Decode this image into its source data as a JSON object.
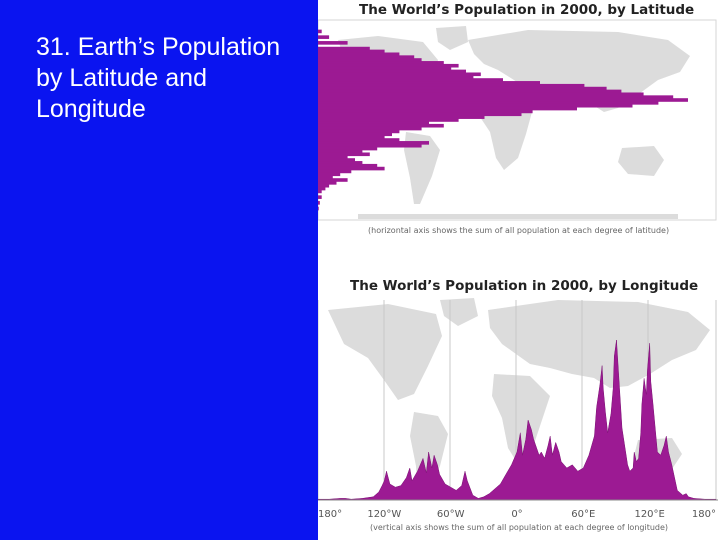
{
  "slide": {
    "title_lines": [
      "31. Earth’s Population",
      "by Latitude and",
      "Longitude"
    ],
    "background_color": "#0a14f0",
    "title_color": "#ffffff"
  },
  "chart_data": [
    {
      "type": "area",
      "orientation": "horizontal",
      "title": "The World’s Population in 2000, by Latitude",
      "note": "(horizontal axis shows the sum of all population at each degree of latitude)",
      "y_unit": "degrees latitude",
      "ylim": [
        -60,
        80
      ],
      "xlim": [
        0,
        100
      ],
      "x_unit": "relative population sum",
      "background": "world map",
      "series": [
        {
          "color": "#9c1a93",
          "y": [
            72,
            68,
            64,
            60,
            58,
            56,
            54,
            52,
            50,
            48,
            46,
            44,
            42,
            40,
            38,
            36,
            34,
            32,
            30,
            28,
            26,
            24,
            22,
            20,
            18,
            16,
            14,
            12,
            10,
            8,
            6,
            4,
            2,
            0,
            -2,
            -4,
            -6,
            -8,
            -10,
            -12,
            -14,
            -16,
            -18,
            -20,
            -22,
            -24,
            -26,
            -28,
            -30,
            -32,
            -34,
            -36,
            -38,
            -40,
            -44,
            -48,
            -52
          ],
          "values": [
            1,
            3,
            8,
            14,
            18,
            22,
            26,
            28,
            34,
            38,
            36,
            40,
            44,
            42,
            50,
            60,
            72,
            78,
            82,
            88,
            96,
            100,
            92,
            85,
            70,
            58,
            55,
            45,
            38,
            30,
            34,
            28,
            22,
            20,
            18,
            22,
            30,
            28,
            16,
            12,
            14,
            8,
            10,
            12,
            16,
            18,
            9,
            6,
            4,
            8,
            5,
            3,
            2,
            1,
            1,
            0.5,
            0.2
          ]
        }
      ]
    },
    {
      "type": "area",
      "orientation": "vertical",
      "title": "The World’s Population in 2000, by Longitude",
      "note": "(vertical axis shows the sum of all population at each degree of longitude)",
      "xlim": [
        -180,
        180
      ],
      "ylim": [
        0,
        100
      ],
      "y_unit": "relative population sum",
      "x_ticks": [
        "180°",
        "120°W",
        "60°W",
        "0°",
        "60°E",
        "120°E",
        "180°"
      ],
      "x_tick_values": [
        -180,
        -120,
        -60,
        0,
        60,
        120,
        180
      ],
      "background": "world map",
      "series": [
        {
          "color": "#9c1a93",
          "x": [
            -180,
            -170,
            -160,
            -155,
            -150,
            -140,
            -130,
            -125,
            -122,
            -120,
            -118,
            -115,
            -110,
            -105,
            -100,
            -97,
            -95,
            -90,
            -85,
            -82,
            -80,
            -77,
            -75,
            -72,
            -70,
            -65,
            -60,
            -55,
            -50,
            -47,
            -45,
            -40,
            -35,
            -30,
            -25,
            -20,
            -15,
            -10,
            -5,
            0,
            3,
            5,
            8,
            10,
            13,
            15,
            18,
            20,
            22,
            25,
            28,
            30,
            32,
            35,
            38,
            40,
            45,
            50,
            55,
            60,
            65,
            70,
            72,
            75,
            77,
            78,
            80,
            82,
            85,
            87,
            88,
            90,
            92,
            95,
            100,
            102,
            105,
            106,
            108,
            110,
            112,
            113,
            115,
            117,
            118,
            120,
            121,
            123,
            125,
            127,
            130,
            133,
            135,
            137,
            140,
            145,
            150,
            153,
            155,
            160,
            170,
            175,
            180
          ],
          "values": [
            0.5,
            0.5,
            1,
            1,
            0.5,
            1,
            2,
            5,
            9,
            12,
            18,
            10,
            8,
            9,
            14,
            20,
            12,
            18,
            26,
            17,
            30,
            20,
            28,
            22,
            16,
            10,
            8,
            6,
            9,
            18,
            12,
            3,
            1,
            2,
            4,
            7,
            10,
            16,
            22,
            30,
            42,
            28,
            38,
            50,
            44,
            38,
            32,
            28,
            30,
            26,
            34,
            40,
            28,
            36,
            30,
            24,
            20,
            22,
            18,
            20,
            28,
            40,
            58,
            72,
            84,
            70,
            55,
            42,
            54,
            70,
            90,
            100,
            78,
            45,
            22,
            18,
            20,
            30,
            24,
            26,
            42,
            60,
            76,
            66,
            82,
            98,
            74,
            60,
            45,
            30,
            28,
            34,
            40,
            30,
            22,
            6,
            3,
            4,
            2,
            1,
            0.5,
            0.5,
            0.5
          ]
        }
      ]
    }
  ]
}
